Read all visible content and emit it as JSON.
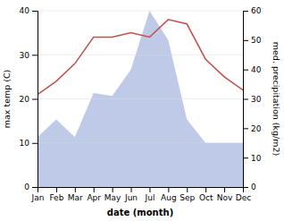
{
  "chart_data": {
    "type": "line",
    "categories": [
      "Jan",
      "Feb",
      "Mar",
      "Apr",
      "May",
      "Jun",
      "Jul",
      "Aug",
      "Sep",
      "Oct",
      "Nov",
      "Dec"
    ],
    "series": [
      {
        "type": "area",
        "axis": "y2",
        "color": "#bfc9e8",
        "values": [
          17,
          23,
          17,
          32,
          31,
          40,
          60,
          50,
          23,
          15,
          15,
          15
        ]
      },
      {
        "type": "line",
        "color": "#c0504d",
        "values": [
          21,
          24,
          28,
          34,
          34,
          35,
          34,
          38,
          37,
          29,
          25,
          22
        ]
      }
    ],
    "xlabel": "date (month)",
    "ylabel": "max temp (C)",
    "y2label": "med. precipitation (kg/m2)",
    "ylim": [
      0,
      40
    ],
    "yticks": [
      0,
      10,
      20,
      30,
      40
    ],
    "y2lim": [
      0,
      60
    ],
    "y2ticks": [
      0,
      10,
      20,
      30,
      40,
      50,
      60
    ],
    "grid": true
  }
}
